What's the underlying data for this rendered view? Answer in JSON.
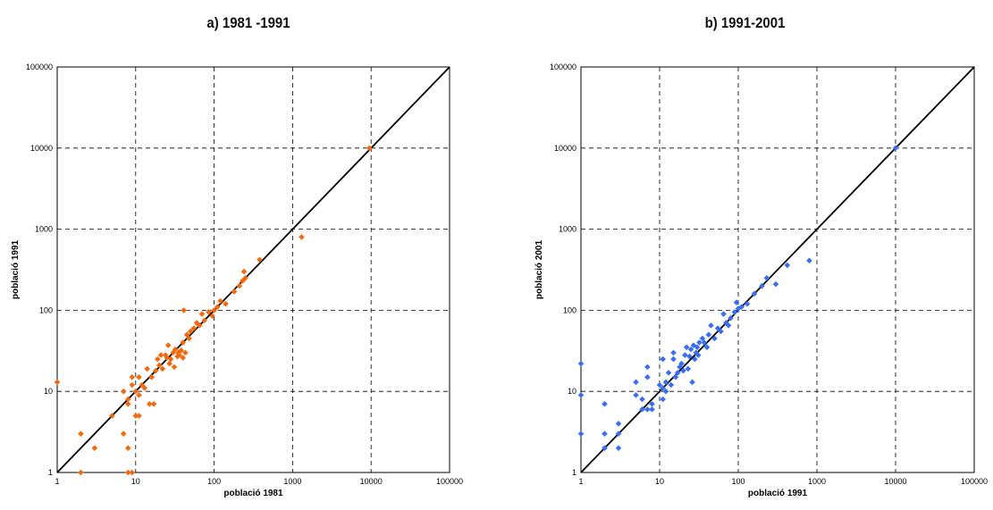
{
  "chart_data": [
    {
      "type": "scatter",
      "title": "a) 1981 -1991",
      "xlabel": "població 1981",
      "ylabel": "població 1991",
      "xscale": "log",
      "yscale": "log",
      "xlim": [
        1,
        100000
      ],
      "ylim": [
        1,
        100000
      ],
      "x_ticks": [
        "1",
        "10",
        "100",
        "1000",
        "10000",
        "100000"
      ],
      "y_ticks": [
        "1",
        "10",
        "100",
        "1000",
        "10000",
        "100000"
      ],
      "grid": true,
      "reference_line": "y = x",
      "series": [
        {
          "color": "#f26a10",
          "points": [
            [
              1,
              13
            ],
            [
              2,
              1
            ],
            [
              2,
              3
            ],
            [
              3,
              2
            ],
            [
              5,
              5
            ],
            [
              7,
              3
            ],
            [
              7,
              10
            ],
            [
              8,
              2
            ],
            [
              8,
              7
            ],
            [
              8,
              8
            ],
            [
              8,
              1
            ],
            [
              9,
              1
            ],
            [
              9,
              12
            ],
            [
              9,
              15
            ],
            [
              10,
              5
            ],
            [
              10,
              10
            ],
            [
              11,
              5
            ],
            [
              11,
              9
            ],
            [
              11,
              15
            ],
            [
              12,
              12
            ],
            [
              13,
              11
            ],
            [
              14,
              19
            ],
            [
              15,
              7
            ],
            [
              16,
              15
            ],
            [
              17,
              7
            ],
            [
              18,
              18
            ],
            [
              19,
              25
            ],
            [
              20,
              21
            ],
            [
              21,
              28
            ],
            [
              22,
              19
            ],
            [
              24,
              28
            ],
            [
              25,
              26
            ],
            [
              26,
              37
            ],
            [
              27,
              22
            ],
            [
              28,
              25
            ],
            [
              30,
              30
            ],
            [
              31,
              20
            ],
            [
              32,
              33
            ],
            [
              34,
              27
            ],
            [
              35,
              30
            ],
            [
              36,
              28
            ],
            [
              38,
              32
            ],
            [
              40,
              26
            ],
            [
              40,
              40
            ],
            [
              41,
              100
            ],
            [
              43,
              30
            ],
            [
              45,
              50
            ],
            [
              48,
              45
            ],
            [
              50,
              55
            ],
            [
              55,
              60
            ],
            [
              60,
              70
            ],
            [
              65,
              65
            ],
            [
              70,
              90
            ],
            [
              75,
              75
            ],
            [
              85,
              95
            ],
            [
              95,
              85
            ],
            [
              100,
              100
            ],
            [
              110,
              110
            ],
            [
              120,
              130
            ],
            [
              140,
              120
            ],
            [
              180,
              170
            ],
            [
              210,
              200
            ],
            [
              230,
              230
            ],
            [
              240,
              300
            ],
            [
              250,
              250
            ],
            [
              380,
              420
            ],
            [
              1300,
              800
            ],
            [
              9500,
              10000
            ]
          ]
        }
      ]
    },
    {
      "type": "scatter",
      "title": "b) 1991-2001",
      "xlabel": "població 1991",
      "ylabel": "població 2001",
      "xscale": "log",
      "yscale": "log",
      "xlim": [
        1,
        100000
      ],
      "ylim": [
        1,
        100000
      ],
      "x_ticks": [
        "1",
        "10",
        "100",
        "1000",
        "10000",
        "100000"
      ],
      "y_ticks": [
        "1",
        "10",
        "100",
        "1000",
        "10000",
        "100000"
      ],
      "grid": true,
      "reference_line": "y = x",
      "series": [
        {
          "color": "#3a6ff0",
          "points": [
            [
              1,
              22
            ],
            [
              1,
              9
            ],
            [
              1,
              3
            ],
            [
              2,
              7
            ],
            [
              2,
              3
            ],
            [
              2,
              2
            ],
            [
              3,
              4
            ],
            [
              3,
              3
            ],
            [
              3,
              2
            ],
            [
              5,
              13
            ],
            [
              5,
              9
            ],
            [
              6,
              6
            ],
            [
              6,
              8
            ],
            [
              7,
              15
            ],
            [
              7,
              20
            ],
            [
              7,
              6
            ],
            [
              8,
              7
            ],
            [
              8,
              6
            ],
            [
              10,
              12
            ],
            [
              11,
              25
            ],
            [
              11,
              8
            ],
            [
              11,
              11
            ],
            [
              12,
              10
            ],
            [
              12,
              13
            ],
            [
              13,
              17
            ],
            [
              14,
              12
            ],
            [
              15,
              25
            ],
            [
              15,
              30
            ],
            [
              16,
              15
            ],
            [
              17,
              17
            ],
            [
              18,
              20
            ],
            [
              19,
              22
            ],
            [
              20,
              18
            ],
            [
              21,
              28
            ],
            [
              22,
              35
            ],
            [
              23,
              19
            ],
            [
              24,
              27
            ],
            [
              25,
              33
            ],
            [
              26,
              13
            ],
            [
              27,
              37
            ],
            [
              28,
              25
            ],
            [
              29,
              30
            ],
            [
              30,
              35
            ],
            [
              31,
              28
            ],
            [
              32,
              40
            ],
            [
              35,
              45
            ],
            [
              37,
              40
            ],
            [
              40,
              35
            ],
            [
              42,
              50
            ],
            [
              45,
              65
            ],
            [
              50,
              45
            ],
            [
              55,
              60
            ],
            [
              60,
              55
            ],
            [
              65,
              90
            ],
            [
              70,
              70
            ],
            [
              75,
              65
            ],
            [
              80,
              80
            ],
            [
              90,
              95
            ],
            [
              95,
              125
            ],
            [
              100,
              105
            ],
            [
              110,
              110
            ],
            [
              130,
              120
            ],
            [
              160,
              160
            ],
            [
              200,
              200
            ],
            [
              230,
              250
            ],
            [
              300,
              210
            ],
            [
              420,
              360
            ],
            [
              800,
              410
            ],
            [
              10000,
              10000
            ]
          ]
        }
      ]
    }
  ]
}
